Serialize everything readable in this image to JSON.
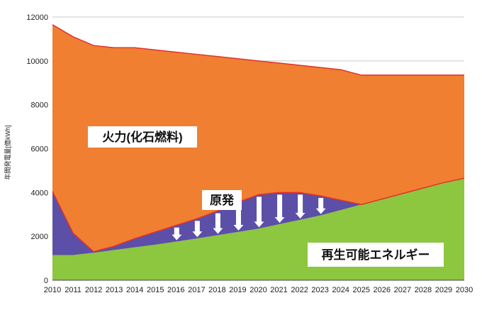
{
  "chart_data": {
    "type": "area",
    "stacked": true,
    "title": "",
    "xlabel": "",
    "ylabel": "年間発電量[億kWh]",
    "x": [
      2010,
      2011,
      2012,
      2013,
      2014,
      2015,
      2016,
      2017,
      2018,
      2019,
      2020,
      2021,
      2022,
      2023,
      2024,
      2025,
      2026,
      2027,
      2028,
      2029,
      2030
    ],
    "xlim": [
      2010,
      2030
    ],
    "ylim": [
      0,
      12000
    ],
    "yticks": [
      0,
      2000,
      4000,
      6000,
      8000,
      10000,
      12000
    ],
    "grid": "horizontal",
    "series": [
      {
        "name": "再生可能エネルギー",
        "color": "#8DC63F",
        "upper": [
          1150,
          1150,
          1250,
          1380,
          1500,
          1620,
          1760,
          1900,
          2050,
          2200,
          2350,
          2550,
          2750,
          2950,
          3200,
          3450,
          3700,
          3950,
          4200,
          4450,
          4650
        ]
      },
      {
        "name": "原発",
        "color": "#5B4FA8",
        "upper": [
          4050,
          2150,
          1300,
          1550,
          1900,
          2200,
          2500,
          2800,
          3150,
          3550,
          3900,
          4000,
          4000,
          3850,
          3650,
          3450,
          3700,
          3950,
          4200,
          4450,
          4650
        ]
      },
      {
        "name": "火力(化石燃料)",
        "color": "#F07F32",
        "upper": [
          11650,
          11100,
          10700,
          10600,
          10600,
          10500,
          10400,
          10300,
          10200,
          10100,
          10000,
          9900,
          9800,
          9700,
          9600,
          9350,
          9350,
          9350,
          9350,
          9350,
          9350
        ]
      }
    ],
    "annotations": {
      "decrease_arrows_years": [
        2016,
        2017,
        2018,
        2019,
        2020,
        2021,
        2022,
        2023
      ],
      "arrow_color": "#ffffff",
      "arrow_meaning": "down"
    },
    "labels": {
      "thermal": "火力(化石燃料)",
      "nuclear": "原発",
      "renewable": "再生可能エネルギー"
    },
    "colors": {
      "thermal_edge": "#E3322B",
      "gridline": "#C8C8C8",
      "axis": "#444444"
    }
  }
}
